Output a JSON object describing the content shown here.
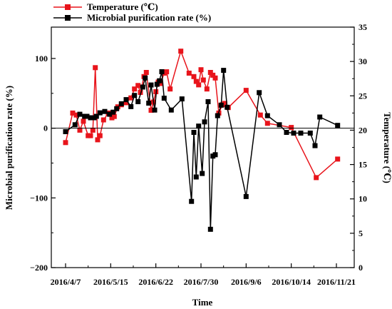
{
  "chart_data": {
    "type": "line",
    "xlabel": "Time",
    "ylabel_left": "Microbial purification rate (%)",
    "ylabel_right": "Temperature (℃)",
    "x_tick_labels": [
      "2016/4/7",
      "2016/5/15",
      "2016/6/22",
      "2016/7/30",
      "2016/9/6",
      "2016/10/14",
      "2016/11/21"
    ],
    "x_range": [
      "2016-03-26",
      "2016-12-06"
    ],
    "y_left_ticks": [
      "−200",
      "−100",
      "0",
      "100"
    ],
    "y_left_range": [
      -200,
      145
    ],
    "y_right_ticks": [
      "0",
      "5",
      "10",
      "15",
      "20",
      "25",
      "30",
      "35"
    ],
    "y_right_range": [
      0,
      35
    ],
    "legend_position": "top-left",
    "grid": false,
    "series": [
      {
        "name": "Temperature (℃)",
        "axis": "right",
        "color": "#e8141b",
        "marker": "square",
        "x": [
          "2016-04-07",
          "2016-04-13",
          "2016-04-16",
          "2016-04-19",
          "2016-04-22",
          "2016-04-26",
          "2016-04-28",
          "2016-04-30",
          "2016-05-02",
          "2016-05-04",
          "2016-05-06",
          "2016-05-09",
          "2016-05-13",
          "2016-05-16",
          "2016-05-18",
          "2016-05-21",
          "2016-05-24",
          "2016-05-28",
          "2016-06-01",
          "2016-06-04",
          "2016-06-07",
          "2016-06-09",
          "2016-06-12",
          "2016-06-14",
          "2016-06-18",
          "2016-06-20",
          "2016-06-22",
          "2016-06-24",
          "2016-06-26",
          "2016-06-29",
          "2016-07-01",
          "2016-07-04",
          "2016-07-13",
          "2016-07-20",
          "2016-07-24",
          "2016-07-26",
          "2016-07-28",
          "2016-07-30",
          "2016-08-01",
          "2016-08-04",
          "2016-08-07",
          "2016-08-09",
          "2016-08-11",
          "2016-08-14",
          "2016-08-17",
          "2016-08-19",
          "2016-08-22",
          "2016-09-06",
          "2016-09-18",
          "2016-09-24",
          "2016-10-14",
          "2016-11-04",
          "2016-11-22"
        ],
        "values": [
          18.2,
          22.5,
          22.2,
          20.0,
          21.3,
          19.2,
          19.2,
          20.0,
          29.1,
          18.6,
          19.2,
          21.5,
          22.5,
          21.8,
          22.0,
          23.4,
          23.7,
          24.0,
          24.7,
          26.0,
          26.5,
          25.5,
          27.8,
          28.4,
          22.9,
          24.1,
          25.6,
          27.0,
          26.8,
          28.3,
          28.5,
          26.0,
          31.5,
          28.3,
          27.8,
          27.1,
          26.6,
          28.8,
          27.3,
          26.0,
          28.4,
          28.0,
          27.6,
          22.5,
          23.7,
          23.9,
          23.3,
          25.8,
          22.2,
          21.0,
          20.4,
          13.1,
          15.8
        ]
      },
      {
        "name": "Microbial purification rate (%)",
        "axis": "left",
        "color": "#000000",
        "marker": "square",
        "x": [
          "2016-04-07",
          "2016-04-15",
          "2016-04-19",
          "2016-04-23",
          "2016-04-25",
          "2016-04-28",
          "2016-05-01",
          "2016-05-03",
          "2016-05-06",
          "2016-05-10",
          "2016-05-14",
          "2016-05-17",
          "2016-05-20",
          "2016-05-24",
          "2016-05-28",
          "2016-06-01",
          "2016-06-04",
          "2016-06-07",
          "2016-06-11",
          "2016-06-13",
          "2016-06-16",
          "2016-06-18",
          "2016-06-21",
          "2016-06-23",
          "2016-06-25",
          "2016-06-27",
          "2016-06-29",
          "2016-07-05",
          "2016-07-14",
          "2016-07-22",
          "2016-07-24",
          "2016-07-26",
          "2016-07-28",
          "2016-07-31",
          "2016-08-02",
          "2016-08-05",
          "2016-08-07",
          "2016-08-09",
          "2016-08-11",
          "2016-08-13",
          "2016-08-16",
          "2016-08-18",
          "2016-08-21",
          "2016-09-06",
          "2016-09-17",
          "2016-09-24",
          "2016-10-04",
          "2016-10-10",
          "2016-10-16",
          "2016-10-22",
          "2016-10-30",
          "2016-11-03",
          "2016-11-07",
          "2016-11-22"
        ],
        "values": [
          -5,
          5,
          20,
          17,
          17,
          15,
          15,
          17,
          22,
          24,
          20,
          23,
          28,
          35,
          41,
          31,
          47,
          38,
          59,
          72,
          36,
          62,
          26,
          63,
          68,
          81,
          43,
          26,
          42,
          -105,
          -6,
          -70,
          3,
          -65,
          9,
          38,
          -145,
          -40,
          -38,
          18,
          33,
          83,
          30,
          -98,
          51,
          18,
          5,
          -6,
          -7,
          -7,
          -7,
          -25,
          16,
          4
        ]
      }
    ]
  }
}
